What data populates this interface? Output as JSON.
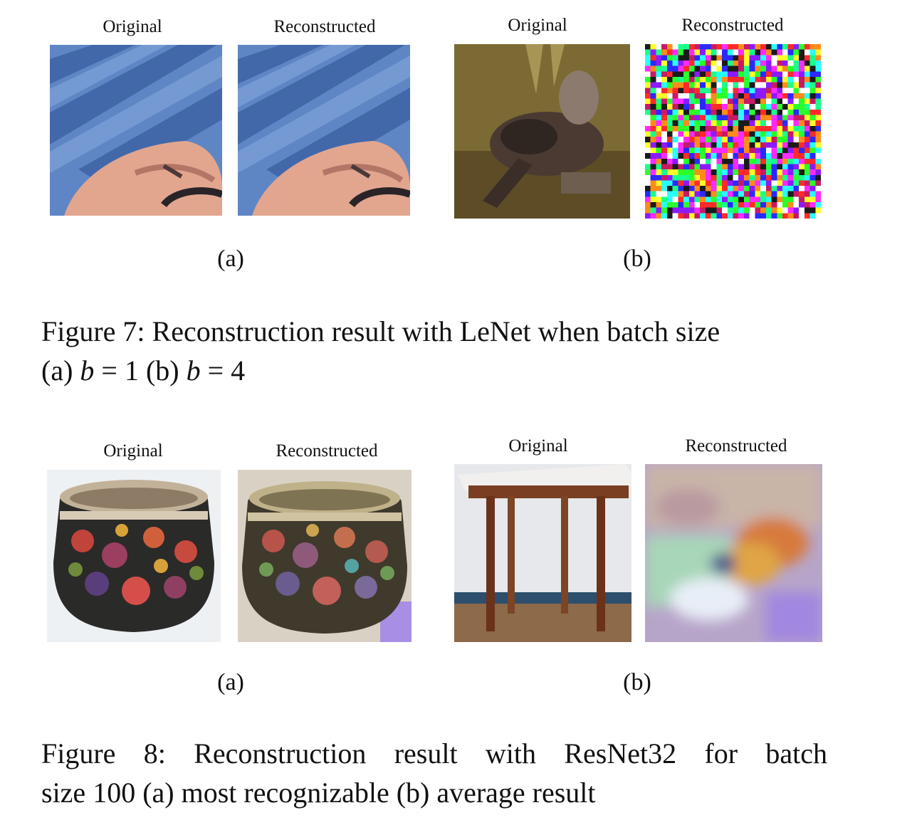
{
  "figure7": {
    "panel_a": {
      "left_label": "Original",
      "right_label": "Reconstructed",
      "sublabel": "(a)"
    },
    "panel_b": {
      "left_label": "Original",
      "right_label": "Reconstructed",
      "sublabel": "(b)"
    },
    "caption_line1": "Figure 7: Reconstruction result with LeNet when batch size",
    "caption_line2_parts": [
      "(a) ",
      "b",
      " = 1 (b) ",
      "b",
      " = 4"
    ]
  },
  "figure8": {
    "panel_a": {
      "left_label": "Original",
      "right_label": "Reconstructed",
      "sublabel": "(a)"
    },
    "panel_b": {
      "left_label": "Original",
      "right_label": "Reconstructed",
      "sublabel": "(b)"
    },
    "caption_line1": "Figure 8:  Reconstruction result with ResNet32 for batch",
    "caption_line2": "size 100 (a) most recognizable (b) average result"
  }
}
